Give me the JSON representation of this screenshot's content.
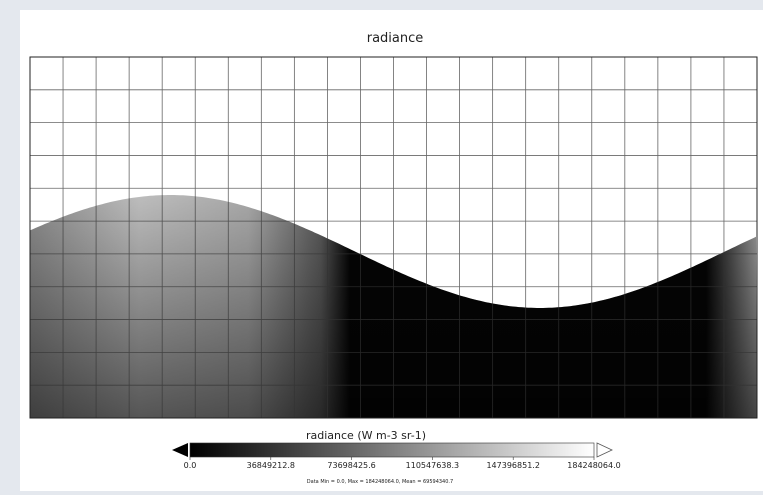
{
  "title": "radiance",
  "colorbar": {
    "label": "radiance (W m-3 sr-1)",
    "range": [
      0,
      184248064
    ],
    "ticks": [
      {
        "value": 0,
        "label": "0.0"
      },
      36849212.8,
      73698425.6,
      110547638.3,
      147396851.2,
      {
        "value": 184248064,
        "label": "184248064.0"
      }
    ]
  },
  "footer": "Data Min = 0.0, Max = 184248064.0, Mean = 69594340.7"
}
